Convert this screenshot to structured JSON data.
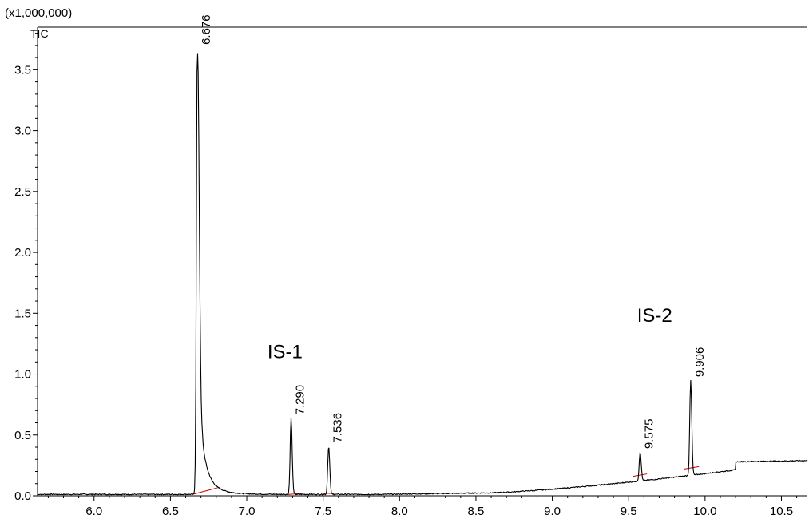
{
  "chart_data": {
    "type": "line",
    "multiplier_label": "(x1,000,000)",
    "trace_name": "TIC",
    "xlim": [
      5.63,
      10.67
    ],
    "ylim": [
      0.0,
      3.85
    ],
    "x_ticks": [
      {
        "value": 6.0,
        "label": "6.0"
      },
      {
        "value": 6.5,
        "label": "6.5"
      },
      {
        "value": 7.0,
        "label": "7.0"
      },
      {
        "value": 7.5,
        "label": "7.5"
      },
      {
        "value": 8.0,
        "label": "8.0"
      },
      {
        "value": 8.5,
        "label": "8.5"
      },
      {
        "value": 9.0,
        "label": "9.0"
      },
      {
        "value": 9.5,
        "label": "9.5"
      },
      {
        "value": 10.0,
        "label": "10.0"
      },
      {
        "value": 10.5,
        "label": "10.5"
      }
    ],
    "y_ticks": [
      {
        "value": 0.0,
        "label": "0.0"
      },
      {
        "value": 0.5,
        "label": "0.5"
      },
      {
        "value": 1.0,
        "label": "1.0"
      },
      {
        "value": 1.5,
        "label": "1.5"
      },
      {
        "value": 2.0,
        "label": "2.0"
      },
      {
        "value": 2.5,
        "label": "2.5"
      },
      {
        "value": 3.0,
        "label": "3.0"
      },
      {
        "value": 3.5,
        "label": "3.5"
      }
    ],
    "peaks": [
      {
        "rt": 6.676,
        "label": "6.676",
        "height": 3.68
      },
      {
        "rt": 7.29,
        "label": "7.290",
        "height": 0.64
      },
      {
        "rt": 7.536,
        "label": "7.536",
        "height": 0.41
      },
      {
        "rt": 9.575,
        "label": "9.575",
        "height": 0.36
      },
      {
        "rt": 9.906,
        "label": "9.906",
        "height": 0.95
      }
    ],
    "annotations": [
      {
        "text": "IS-1",
        "x": 7.25,
        "y": 1.13
      },
      {
        "text": "IS-2",
        "x": 9.67,
        "y": 1.43
      }
    ],
    "baseline_segments": [
      [
        [
          6.64,
          0.01
        ],
        [
          6.82,
          0.07
        ]
      ],
      [
        [
          7.26,
          0.01
        ],
        [
          7.36,
          0.02
        ]
      ],
      [
        [
          7.5,
          0.02
        ],
        [
          7.58,
          0.02
        ]
      ],
      [
        [
          9.53,
          0.16
        ],
        [
          9.62,
          0.18
        ]
      ],
      [
        [
          9.86,
          0.22
        ],
        [
          9.96,
          0.24
        ]
      ]
    ],
    "baseline_color": "#cc0000",
    "line_color": "#000000"
  }
}
